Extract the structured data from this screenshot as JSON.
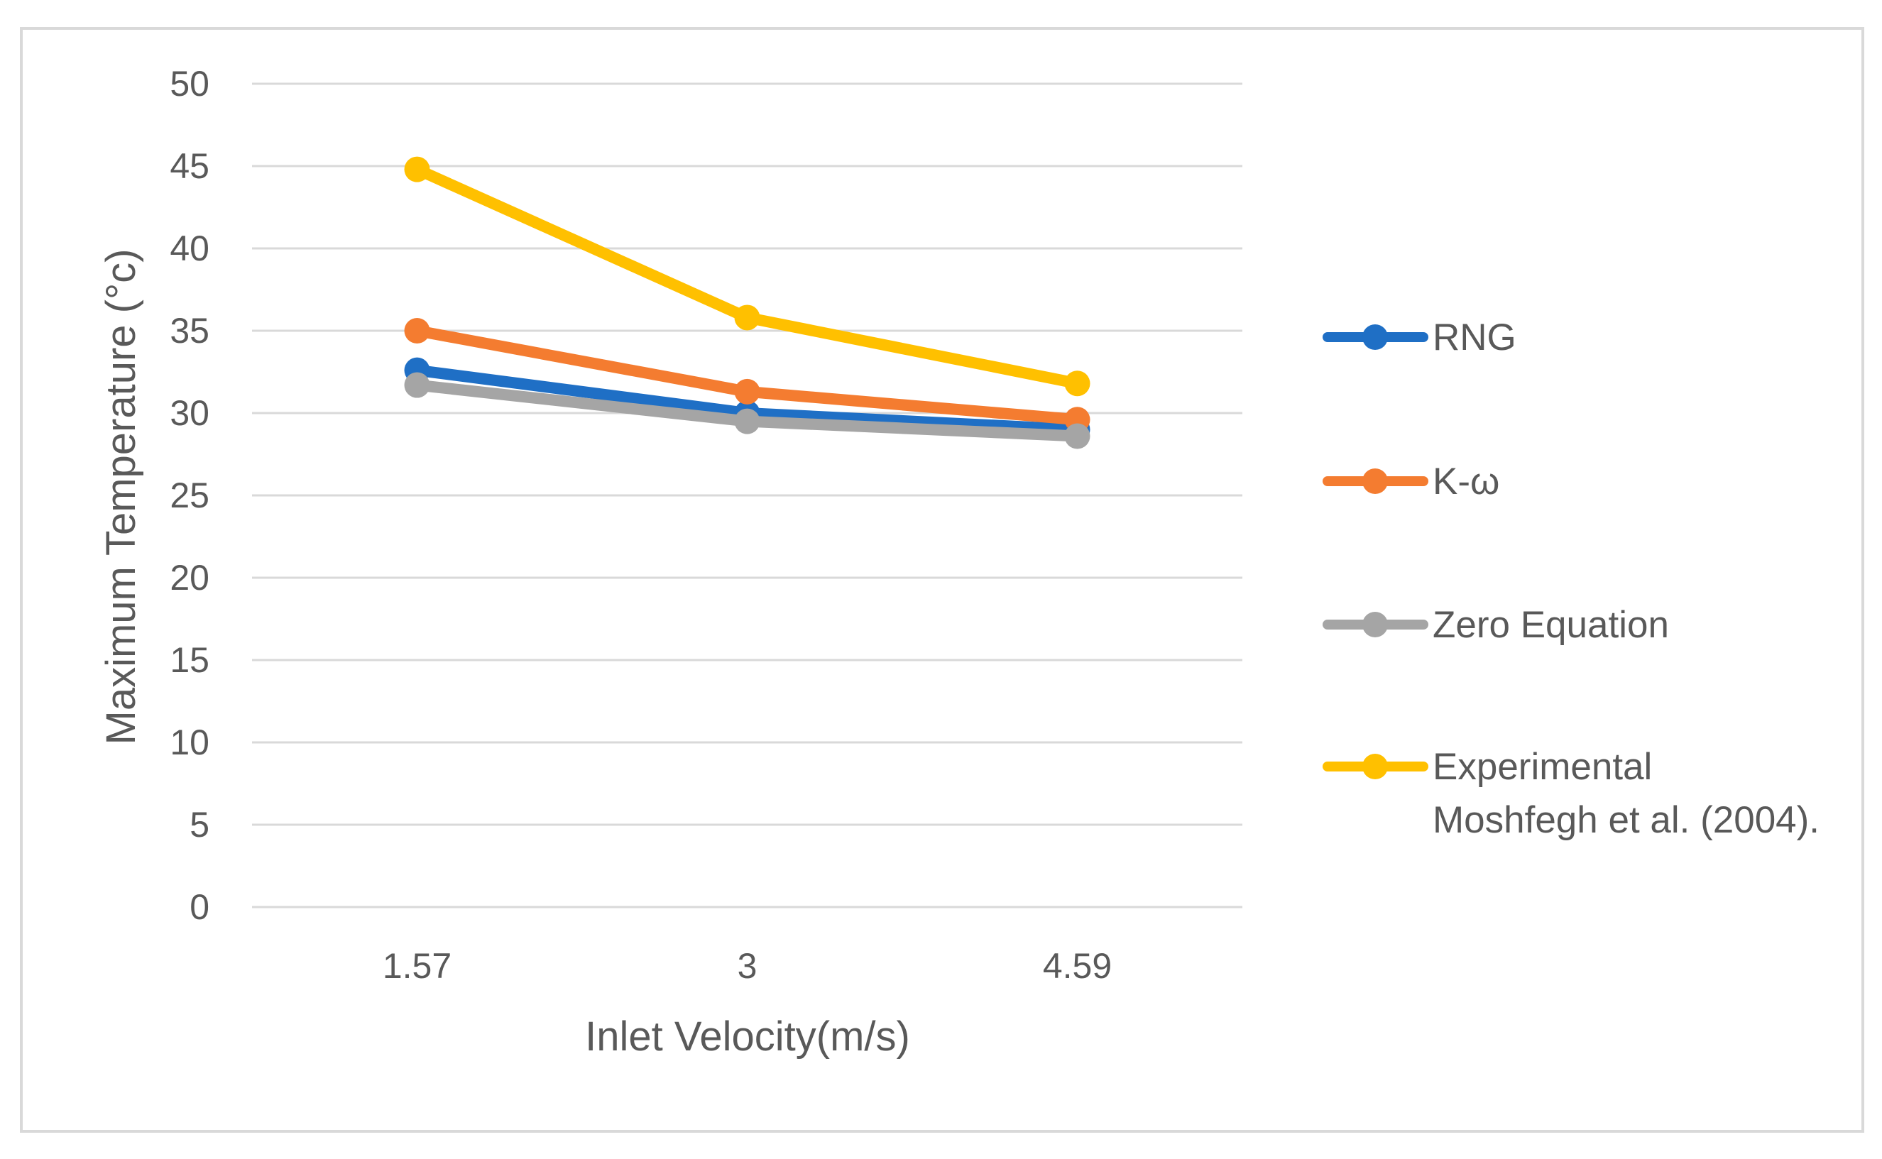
{
  "chart_data": {
    "type": "line",
    "title": "",
    "xlabel": "Inlet Velocity(m/s)",
    "ylabel": "Maximum Temperature (°c)",
    "categories": [
      "1.57",
      "3",
      "4.59"
    ],
    "ylim": [
      0,
      50
    ],
    "yticks": [
      "0",
      "5",
      "10",
      "15",
      "20",
      "25",
      "30",
      "35",
      "40",
      "45",
      "50"
    ],
    "grid": true,
    "legend_position": "right",
    "series": [
      {
        "name": "RNG",
        "label_lines": [
          "RNG"
        ],
        "color": "#1f6fc5",
        "values": [
          32.6,
          30.0,
          29.0
        ]
      },
      {
        "name": "K-ω",
        "label_lines": [
          "K-ω"
        ],
        "color": "#f47c30",
        "values": [
          35.0,
          31.3,
          29.6
        ]
      },
      {
        "name": "Zero Equation",
        "label_lines": [
          "Zero Equation"
        ],
        "color": "#a5a5a5",
        "values": [
          31.7,
          29.5,
          28.6
        ]
      },
      {
        "name": "Experimental Moshfegh et al. (2004).",
        "label_lines": [
          "Experimental",
          "Moshfegh et al. (2004)."
        ],
        "color": "#ffc000",
        "values": [
          44.8,
          35.8,
          31.8
        ]
      }
    ]
  }
}
